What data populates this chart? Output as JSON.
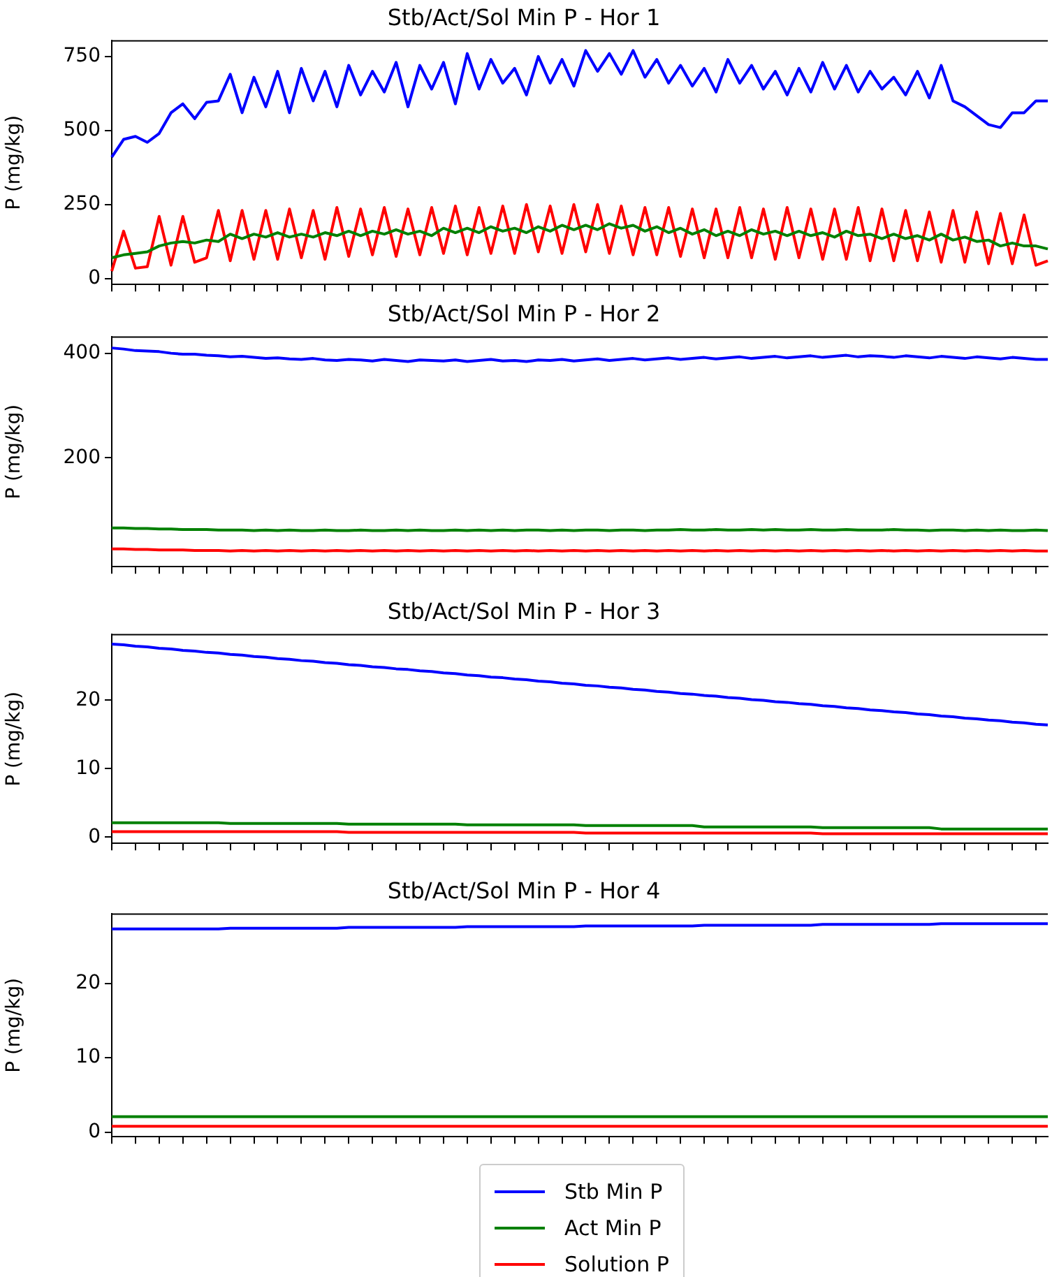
{
  "chart_data": [
    {
      "type": "line",
      "title": "Stb/Act/Sol Min P - Hor 1",
      "ylabel": "P (mg/kg)",
      "ylim": [
        -20,
        803
      ],
      "yticks": [
        0,
        250,
        500,
        750
      ],
      "tick_labels": "y",
      "grid": false,
      "legend": false,
      "marker": "none",
      "line_style": "solid",
      "categories": [
        null,
        null,
        null,
        null,
        null,
        null,
        null,
        null,
        null,
        null,
        null,
        null,
        null,
        null,
        null,
        null,
        null,
        null,
        null,
        null,
        null,
        null,
        null,
        null,
        null,
        null,
        null,
        null,
        null,
        null,
        null,
        null,
        null,
        null,
        null,
        null,
        null,
        null,
        null,
        null,
        null,
        null,
        null,
        null,
        null,
        null,
        null,
        null,
        null,
        null,
        null,
        null,
        null,
        null,
        null,
        null,
        null,
        null,
        null,
        null,
        null,
        null,
        null,
        null,
        null,
        null,
        null,
        null,
        null,
        null,
        null,
        null,
        null,
        null,
        null,
        null,
        null,
        null,
        null,
        null
      ],
      "series": [
        {
          "color": "#0000ff",
          "values": [
            410,
            470,
            480,
            460,
            490,
            560,
            590,
            540,
            595,
            600,
            690,
            560,
            680,
            580,
            700,
            560,
            710,
            600,
            700,
            580,
            720,
            620,
            700,
            630,
            730,
            580,
            720,
            640,
            730,
            590,
            760,
            640,
            740,
            660,
            710,
            620,
            750,
            660,
            740,
            650,
            770,
            700,
            760,
            690,
            770,
            680,
            740,
            660,
            720,
            650,
            710,
            630,
            740,
            660,
            720,
            640,
            700,
            620,
            710,
            630,
            730,
            640,
            720,
            630,
            700,
            640,
            680,
            620,
            700,
            610,
            720,
            600,
            580,
            550,
            520,
            510,
            560,
            560,
            600,
            600
          ]
        },
        {
          "color": "#008000",
          "values": [
            70,
            80,
            85,
            90,
            110,
            120,
            125,
            120,
            130,
            125,
            150,
            135,
            150,
            140,
            155,
            140,
            150,
            140,
            155,
            145,
            160,
            145,
            160,
            150,
            165,
            150,
            160,
            145,
            170,
            155,
            170,
            155,
            175,
            160,
            170,
            155,
            175,
            160,
            180,
            165,
            180,
            165,
            185,
            170,
            180,
            160,
            175,
            155,
            170,
            150,
            165,
            145,
            160,
            145,
            165,
            150,
            160,
            145,
            160,
            145,
            155,
            140,
            160,
            145,
            150,
            135,
            150,
            135,
            145,
            130,
            150,
            130,
            140,
            125,
            130,
            110,
            120,
            110,
            110,
            100
          ]
        },
        {
          "color": "#ff0000",
          "values": [
            25,
            160,
            35,
            40,
            210,
            45,
            210,
            55,
            70,
            230,
            60,
            230,
            65,
            230,
            65,
            235,
            70,
            230,
            65,
            240,
            75,
            235,
            80,
            240,
            75,
            235,
            80,
            240,
            85,
            245,
            80,
            240,
            85,
            245,
            85,
            250,
            90,
            245,
            85,
            250,
            90,
            250,
            85,
            245,
            80,
            240,
            80,
            240,
            75,
            235,
            70,
            235,
            70,
            240,
            70,
            235,
            65,
            240,
            70,
            235,
            65,
            235,
            65,
            240,
            60,
            235,
            60,
            230,
            60,
            225,
            55,
            230,
            55,
            225,
            50,
            220,
            50,
            215,
            45,
            60
          ]
        }
      ]
    },
    {
      "type": "line",
      "title": "Stb/Act/Sol Min P - Hor 2",
      "ylabel": "P (mg/kg)",
      "ylim": [
        -8,
        431
      ],
      "yticks": [
        200,
        400
      ],
      "tick_labels": "y",
      "grid": false,
      "legend": false,
      "marker": "none",
      "line_style": "solid",
      "categories": [
        null,
        null,
        null,
        null,
        null,
        null,
        null,
        null,
        null,
        null,
        null,
        null,
        null,
        null,
        null,
        null,
        null,
        null,
        null,
        null,
        null,
        null,
        null,
        null,
        null,
        null,
        null,
        null,
        null,
        null,
        null,
        null,
        null,
        null,
        null,
        null,
        null,
        null,
        null,
        null,
        null,
        null,
        null,
        null,
        null,
        null,
        null,
        null,
        null,
        null,
        null,
        null,
        null,
        null,
        null,
        null,
        null,
        null,
        null,
        null,
        null,
        null,
        null,
        null,
        null,
        null,
        null,
        null,
        null,
        null,
        null,
        null,
        null,
        null,
        null,
        null,
        null,
        null,
        null,
        null
      ],
      "series": [
        {
          "color": "#0000ff",
          "values": [
            410,
            408,
            405,
            404,
            403,
            400,
            398,
            398,
            396,
            395,
            393,
            394,
            392,
            390,
            391,
            389,
            388,
            390,
            387,
            386,
            388,
            387,
            385,
            388,
            386,
            384,
            387,
            386,
            385,
            387,
            384,
            386,
            388,
            385,
            386,
            384,
            387,
            386,
            388,
            385,
            387,
            389,
            386,
            388,
            390,
            387,
            389,
            391,
            388,
            390,
            392,
            389,
            391,
            393,
            390,
            392,
            394,
            391,
            393,
            395,
            392,
            394,
            396,
            393,
            395,
            394,
            392,
            395,
            393,
            391,
            394,
            392,
            390,
            393,
            391,
            389,
            392,
            390,
            388,
            388
          ]
        },
        {
          "color": "#008000",
          "values": [
            66,
            66,
            65,
            65,
            64,
            64,
            63,
            63,
            63,
            62,
            62,
            62,
            61,
            62,
            61,
            62,
            61,
            61,
            62,
            61,
            61,
            62,
            61,
            61,
            62,
            61,
            62,
            61,
            61,
            62,
            61,
            62,
            61,
            62,
            61,
            62,
            62,
            61,
            62,
            61,
            62,
            62,
            61,
            62,
            62,
            61,
            62,
            62,
            63,
            62,
            62,
            63,
            62,
            62,
            63,
            62,
            63,
            62,
            62,
            63,
            62,
            62,
            63,
            62,
            62,
            62,
            63,
            62,
            62,
            61,
            62,
            62,
            61,
            62,
            61,
            62,
            61,
            61,
            62,
            61
          ]
        },
        {
          "color": "#ff0000",
          "values": [
            26,
            26,
            25,
            25,
            24,
            24,
            24,
            23,
            23,
            23,
            22,
            23,
            22,
            23,
            22,
            23,
            22,
            23,
            22,
            23,
            22,
            23,
            22,
            23,
            22,
            23,
            22,
            23,
            22,
            23,
            22,
            23,
            22,
            23,
            22,
            23,
            22,
            23,
            22,
            23,
            22,
            23,
            22,
            23,
            22,
            23,
            22,
            23,
            22,
            23,
            22,
            23,
            22,
            23,
            22,
            23,
            22,
            23,
            22,
            23,
            22,
            23,
            22,
            23,
            22,
            23,
            22,
            23,
            22,
            23,
            22,
            23,
            22,
            23,
            22,
            23,
            22,
            23,
            22,
            22
          ]
        }
      ]
    },
    {
      "type": "line",
      "title": "Stb/Act/Sol Min P - Hor 3",
      "ylabel": "P (mg/kg)",
      "ylim": [
        -0.9,
        29.6
      ],
      "yticks": [
        0,
        10,
        20
      ],
      "tick_labels": "y",
      "grid": false,
      "legend": false,
      "marker": "none",
      "line_style": "solid",
      "categories": [
        null,
        null,
        null,
        null,
        null,
        null,
        null,
        null,
        null,
        null,
        null,
        null,
        null,
        null,
        null,
        null,
        null,
        null,
        null,
        null,
        null,
        null,
        null,
        null,
        null,
        null,
        null,
        null,
        null,
        null,
        null,
        null,
        null,
        null,
        null,
        null,
        null,
        null,
        null,
        null,
        null,
        null,
        null,
        null,
        null,
        null,
        null,
        null,
        null,
        null,
        null,
        null,
        null,
        null,
        null,
        null,
        null,
        null,
        null,
        null,
        null,
        null,
        null,
        null,
        null,
        null,
        null,
        null,
        null,
        null,
        null,
        null,
        null,
        null,
        null,
        null,
        null,
        null,
        null,
        null
      ],
      "series": [
        {
          "color": "#0000ff",
          "values": [
            28.2,
            28.1,
            27.9,
            27.8,
            27.6,
            27.5,
            27.3,
            27.2,
            27.0,
            26.9,
            26.7,
            26.6,
            26.4,
            26.3,
            26.1,
            26.0,
            25.8,
            25.7,
            25.5,
            25.4,
            25.2,
            25.1,
            24.9,
            24.8,
            24.6,
            24.5,
            24.3,
            24.2,
            24.0,
            23.9,
            23.7,
            23.6,
            23.4,
            23.3,
            23.1,
            23.0,
            22.8,
            22.7,
            22.5,
            22.4,
            22.2,
            22.1,
            21.9,
            21.8,
            21.6,
            21.5,
            21.3,
            21.2,
            21.0,
            20.9,
            20.7,
            20.6,
            20.4,
            20.3,
            20.1,
            20.0,
            19.8,
            19.7,
            19.5,
            19.4,
            19.2,
            19.1,
            18.9,
            18.8,
            18.6,
            18.5,
            18.3,
            18.2,
            18.0,
            17.9,
            17.7,
            17.6,
            17.4,
            17.3,
            17.1,
            17.0,
            16.8,
            16.7,
            16.5,
            16.4
          ]
        },
        {
          "color": "#008000",
          "values": [
            2.1,
            2.1,
            2.1,
            2.1,
            2.1,
            2.1,
            2.1,
            2.1,
            2.1,
            2.1,
            2.0,
            2.0,
            2.0,
            2.0,
            2.0,
            2.0,
            2.0,
            2.0,
            2.0,
            2.0,
            1.9,
            1.9,
            1.9,
            1.9,
            1.9,
            1.9,
            1.9,
            1.9,
            1.9,
            1.9,
            1.8,
            1.8,
            1.8,
            1.8,
            1.8,
            1.8,
            1.8,
            1.8,
            1.8,
            1.8,
            1.7,
            1.7,
            1.7,
            1.7,
            1.7,
            1.7,
            1.7,
            1.7,
            1.7,
            1.7,
            1.5,
            1.5,
            1.5,
            1.5,
            1.5,
            1.5,
            1.5,
            1.5,
            1.5,
            1.5,
            1.4,
            1.4,
            1.4,
            1.4,
            1.4,
            1.4,
            1.4,
            1.4,
            1.4,
            1.4,
            1.2,
            1.2,
            1.2,
            1.2,
            1.2,
            1.2,
            1.2,
            1.2,
            1.2,
            1.2
          ]
        },
        {
          "color": "#ff0000",
          "values": [
            0.8,
            0.8,
            0.8,
            0.8,
            0.8,
            0.8,
            0.8,
            0.8,
            0.8,
            0.8,
            0.8,
            0.8,
            0.8,
            0.8,
            0.8,
            0.8,
            0.8,
            0.8,
            0.8,
            0.8,
            0.7,
            0.7,
            0.7,
            0.7,
            0.7,
            0.7,
            0.7,
            0.7,
            0.7,
            0.7,
            0.7,
            0.7,
            0.7,
            0.7,
            0.7,
            0.7,
            0.7,
            0.7,
            0.7,
            0.7,
            0.6,
            0.6,
            0.6,
            0.6,
            0.6,
            0.6,
            0.6,
            0.6,
            0.6,
            0.6,
            0.6,
            0.6,
            0.6,
            0.6,
            0.6,
            0.6,
            0.6,
            0.6,
            0.6,
            0.6,
            0.5,
            0.5,
            0.5,
            0.5,
            0.5,
            0.5,
            0.5,
            0.5,
            0.5,
            0.5,
            0.5,
            0.5,
            0.5,
            0.5,
            0.5,
            0.5,
            0.5,
            0.5,
            0.5,
            0.5
          ]
        }
      ]
    },
    {
      "type": "line",
      "title": "Stb/Act/Sol Min P - Hor 4",
      "ylabel": "P (mg/kg)",
      "ylim": [
        -0.6,
        29.3
      ],
      "yticks": [
        0,
        10,
        20
      ],
      "tick_labels": "y",
      "grid": false,
      "legend": "bottom",
      "marker": "none",
      "line_style": "solid",
      "categories": [
        null,
        null,
        null,
        null,
        null,
        null,
        null,
        null,
        null,
        null,
        null,
        null,
        null,
        null,
        null,
        null,
        null,
        null,
        null,
        null,
        null,
        null,
        null,
        null,
        null,
        null,
        null,
        null,
        null,
        null,
        null,
        null,
        null,
        null,
        null,
        null,
        null,
        null,
        null,
        null,
        null,
        null,
        null,
        null,
        null,
        null,
        null,
        null,
        null,
        null,
        null,
        null,
        null,
        null,
        null,
        null,
        null,
        null,
        null,
        null,
        null,
        null,
        null,
        null,
        null,
        null,
        null,
        null,
        null,
        null,
        null,
        null,
        null,
        null,
        null,
        null,
        null,
        null,
        null,
        null
      ],
      "series": [
        {
          "name": "Stb Min P",
          "color": "#0000ff",
          "values": [
            27.3,
            27.3,
            27.3,
            27.3,
            27.3,
            27.3,
            27.3,
            27.3,
            27.3,
            27.3,
            27.4,
            27.4,
            27.4,
            27.4,
            27.4,
            27.4,
            27.4,
            27.4,
            27.4,
            27.4,
            27.5,
            27.5,
            27.5,
            27.5,
            27.5,
            27.5,
            27.5,
            27.5,
            27.5,
            27.5,
            27.6,
            27.6,
            27.6,
            27.6,
            27.6,
            27.6,
            27.6,
            27.6,
            27.6,
            27.6,
            27.7,
            27.7,
            27.7,
            27.7,
            27.7,
            27.7,
            27.7,
            27.7,
            27.7,
            27.7,
            27.8,
            27.8,
            27.8,
            27.8,
            27.8,
            27.8,
            27.8,
            27.8,
            27.8,
            27.8,
            27.9,
            27.9,
            27.9,
            27.9,
            27.9,
            27.9,
            27.9,
            27.9,
            27.9,
            27.9,
            28.0,
            28.0,
            28.0,
            28.0,
            28.0,
            28.0,
            28.0,
            28.0,
            28.0,
            28.0
          ]
        },
        {
          "name": "Act Min P",
          "color": "#008000",
          "values": [
            2.1,
            2.1,
            2.1,
            2.1,
            2.1,
            2.1,
            2.1,
            2.1,
            2.1,
            2.1,
            2.1,
            2.1,
            2.1,
            2.1,
            2.1,
            2.1,
            2.1,
            2.1,
            2.1,
            2.1,
            2.1,
            2.1,
            2.1,
            2.1,
            2.1,
            2.1,
            2.1,
            2.1,
            2.1,
            2.1,
            2.1,
            2.1,
            2.1,
            2.1,
            2.1,
            2.1,
            2.1,
            2.1,
            2.1,
            2.1,
            2.1,
            2.1,
            2.1,
            2.1,
            2.1,
            2.1,
            2.1,
            2.1,
            2.1,
            2.1,
            2.1,
            2.1,
            2.1,
            2.1,
            2.1,
            2.1,
            2.1,
            2.1,
            2.1,
            2.1,
            2.1,
            2.1,
            2.1,
            2.1,
            2.1,
            2.1,
            2.1,
            2.1,
            2.1,
            2.1,
            2.1,
            2.1,
            2.1,
            2.1,
            2.1,
            2.1,
            2.1,
            2.1,
            2.1,
            2.1
          ]
        },
        {
          "name": "Solution P",
          "color": "#ff0000",
          "values": [
            0.8,
            0.8,
            0.8,
            0.8,
            0.8,
            0.8,
            0.8,
            0.8,
            0.8,
            0.8,
            0.8,
            0.8,
            0.8,
            0.8,
            0.8,
            0.8,
            0.8,
            0.8,
            0.8,
            0.8,
            0.8,
            0.8,
            0.8,
            0.8,
            0.8,
            0.8,
            0.8,
            0.8,
            0.8,
            0.8,
            0.8,
            0.8,
            0.8,
            0.8,
            0.8,
            0.8,
            0.8,
            0.8,
            0.8,
            0.8,
            0.8,
            0.8,
            0.8,
            0.8,
            0.8,
            0.8,
            0.8,
            0.8,
            0.8,
            0.8,
            0.8,
            0.8,
            0.8,
            0.8,
            0.8,
            0.8,
            0.8,
            0.8,
            0.8,
            0.8,
            0.8,
            0.8,
            0.8,
            0.8,
            0.8,
            0.8,
            0.8,
            0.8,
            0.8,
            0.8,
            0.8,
            0.8,
            0.8,
            0.8,
            0.8,
            0.8,
            0.8,
            0.8,
            0.8,
            0.8
          ]
        }
      ]
    }
  ]
}
